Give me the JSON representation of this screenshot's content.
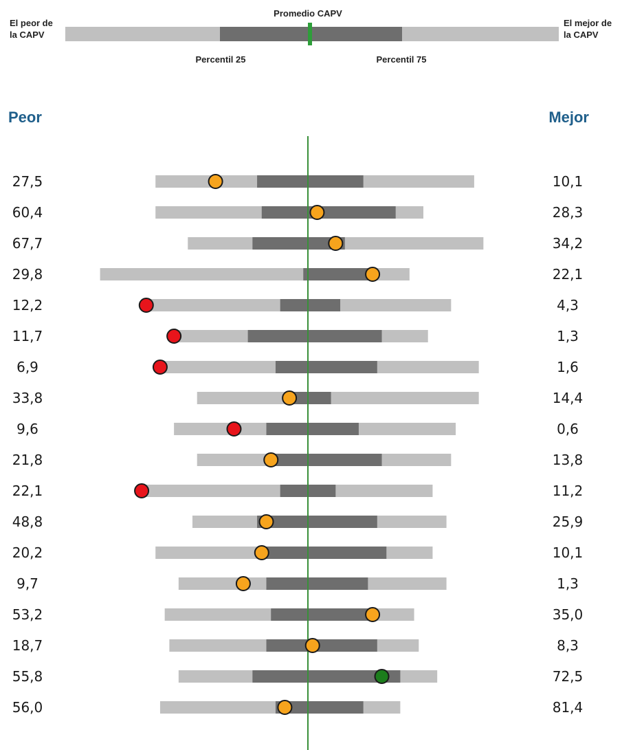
{
  "legend": {
    "left_label": [
      "El peor de",
      "la CAPV"
    ],
    "right_label": [
      "El mejor de",
      "la CAPV"
    ],
    "center_label": "Promedio CAPV",
    "p25_label": "Percentil 25",
    "p75_label": "Percentil 75"
  },
  "headers": {
    "left": "Peor",
    "right": "Mejor"
  },
  "colors": {
    "range": "#c0c0c0",
    "iqr": "#6e6e6e",
    "average_line": "#3a8f3a",
    "legend_average": "#2e9e3a",
    "header": "#1f5f8b",
    "marker_red": "#e8141b",
    "marker_orange": "#f7a41d",
    "marker_green": "#1c7d1c"
  },
  "chart_data": {
    "type": "range-bar",
    "scale": "normalized position: 0 = worst, 0.5 = CAPV average, 1 = best",
    "rows": [
      {
        "worst": "27,5",
        "best": "10,1",
        "range": [
          0.17,
          0.86
        ],
        "iqr": [
          0.39,
          0.62
        ],
        "marker": 0.3,
        "status": "orange"
      },
      {
        "worst": "60,4",
        "best": "28,3",
        "range": [
          0.17,
          0.75
        ],
        "iqr": [
          0.4,
          0.69
        ],
        "marker": 0.52,
        "status": "orange"
      },
      {
        "worst": "67,7",
        "best": "34,2",
        "range": [
          0.24,
          0.88
        ],
        "iqr": [
          0.38,
          0.58
        ],
        "marker": 0.56,
        "status": "orange"
      },
      {
        "worst": "29,8",
        "best": "22,1",
        "range": [
          0.05,
          0.72
        ],
        "iqr": [
          0.49,
          0.64
        ],
        "marker": 0.64,
        "status": "orange"
      },
      {
        "worst": "12,2",
        "best": "4,3",
        "range": [
          0.15,
          0.81
        ],
        "iqr": [
          0.44,
          0.57
        ],
        "marker": 0.15,
        "status": "red"
      },
      {
        "worst": "11,7",
        "best": "1,3",
        "range": [
          0.21,
          0.76
        ],
        "iqr": [
          0.37,
          0.66
        ],
        "marker": 0.21,
        "status": "red"
      },
      {
        "worst": "6,9",
        "best": "1,6",
        "range": [
          0.18,
          0.87
        ],
        "iqr": [
          0.43,
          0.65
        ],
        "marker": 0.18,
        "status": "red"
      },
      {
        "worst": "33,8",
        "best": "14,4",
        "range": [
          0.26,
          0.87
        ],
        "iqr": [
          0.46,
          0.55
        ],
        "marker": 0.46,
        "status": "orange"
      },
      {
        "worst": "9,6",
        "best": "0,6",
        "range": [
          0.21,
          0.82
        ],
        "iqr": [
          0.41,
          0.61
        ],
        "marker": 0.34,
        "status": "red"
      },
      {
        "worst": "21,8",
        "best": "13,8",
        "range": [
          0.26,
          0.81
        ],
        "iqr": [
          0.41,
          0.66
        ],
        "marker": 0.42,
        "status": "orange"
      },
      {
        "worst": "22,1",
        "best": "11,2",
        "range": [
          0.14,
          0.77
        ],
        "iqr": [
          0.44,
          0.56
        ],
        "marker": 0.14,
        "status": "red"
      },
      {
        "worst": "48,8",
        "best": "25,9",
        "range": [
          0.25,
          0.8
        ],
        "iqr": [
          0.39,
          0.65
        ],
        "marker": 0.41,
        "status": "orange"
      },
      {
        "worst": "20,2",
        "best": "10,1",
        "range": [
          0.17,
          0.77
        ],
        "iqr": [
          0.4,
          0.67
        ],
        "marker": 0.4,
        "status": "orange"
      },
      {
        "worst": "9,7",
        "best": "1,3",
        "range": [
          0.22,
          0.8
        ],
        "iqr": [
          0.41,
          0.63
        ],
        "marker": 0.36,
        "status": "orange"
      },
      {
        "worst": "53,2",
        "best": "35,0",
        "range": [
          0.19,
          0.73
        ],
        "iqr": [
          0.42,
          0.64
        ],
        "marker": 0.64,
        "status": "orange"
      },
      {
        "worst": "18,7",
        "best": "8,3",
        "range": [
          0.2,
          0.74
        ],
        "iqr": [
          0.41,
          0.65
        ],
        "marker": 0.51,
        "status": "orange"
      },
      {
        "worst": "55,8",
        "best": "72,5",
        "range": [
          0.22,
          0.78
        ],
        "iqr": [
          0.38,
          0.7
        ],
        "marker": 0.66,
        "status": "green"
      },
      {
        "worst": "56,0",
        "best": "81,4",
        "range": [
          0.18,
          0.7
        ],
        "iqr": [
          0.43,
          0.62
        ],
        "marker": 0.45,
        "status": "orange"
      }
    ]
  }
}
